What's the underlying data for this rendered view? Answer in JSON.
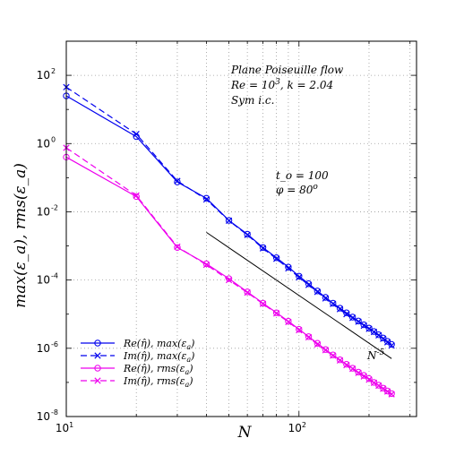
{
  "chart_data": {
    "type": "line",
    "x_scale": "log",
    "y_scale": "log",
    "xlim": [
      10,
      320
    ],
    "ylim": [
      1e-08,
      1000
    ],
    "grid": true,
    "x_ticks": [
      {
        "value": 10,
        "base": "10",
        "exp": "1"
      },
      {
        "value": 100,
        "base": "10",
        "exp": "2"
      }
    ],
    "y_ticks": [
      {
        "value": 100,
        "base": "10",
        "exp": "2"
      },
      {
        "value": 1,
        "base": "10",
        "exp": "0"
      },
      {
        "value": 0.01,
        "base": "10",
        "exp": "-2"
      },
      {
        "value": 0.0001,
        "base": "10",
        "exp": "-4"
      },
      {
        "value": 1e-06,
        "base": "10",
        "exp": "-6"
      },
      {
        "value": 1e-08,
        "base": "10",
        "exp": "-8"
      }
    ],
    "xlabel": "N",
    "ylabel": "max(ε_a), rms(ε_a)",
    "annotations": {
      "title1": "Plane Poiseuille flow",
      "title2_prefix": "Re = 10",
      "title2_sup": "3",
      "title2_suffix": ", k = 2.04",
      "title3": "Sym i.c.",
      "param1": "t_o = 100",
      "param2_prefix": "φ = 80",
      "param2_sup": "o",
      "slope_base": "N",
      "slope_sup": "-5"
    },
    "reference_line": {
      "x": [
        40,
        250
      ],
      "y": [
        0.0025,
        5e-07
      ],
      "color": "#000000",
      "label": "N^-5"
    },
    "series": [
      {
        "name": "Re(η̂), max(ε_a)",
        "color": "#0000ee",
        "linestyle": "solid",
        "marker": "circle",
        "x": [
          10,
          20,
          30,
          40,
          50,
          60,
          70,
          80,
          90,
          100,
          110,
          120,
          130,
          140,
          150,
          160,
          170,
          180,
          190,
          200,
          210,
          220,
          230,
          240,
          250
        ],
        "y": [
          25,
          1.6,
          0.075,
          0.025,
          0.0056,
          0.0022,
          0.0009,
          0.00045,
          0.00024,
          0.00013,
          7.8e-05,
          4.8e-05,
          3.1e-05,
          2.1e-05,
          1.5e-05,
          1.1e-05,
          8.2e-06,
          6.3e-06,
          4.9e-06,
          3.9e-06,
          3.1e-06,
          2.5e-06,
          2e-06,
          1.6e-06,
          1.3e-06
        ]
      },
      {
        "name": "Im(η̂), max(ε_a)",
        "color": "#0000ee",
        "linestyle": "dashed",
        "marker": "x",
        "x": [
          10,
          20,
          30,
          40,
          50,
          60,
          70,
          80,
          90,
          100,
          110,
          120,
          130,
          140,
          150,
          160,
          170,
          180,
          190,
          200,
          210,
          220,
          230,
          240,
          250
        ],
        "y": [
          45,
          1.9,
          0.08,
          0.023,
          0.0055,
          0.0021,
          0.00085,
          0.00042,
          0.00022,
          0.00012,
          7.2e-05,
          4.5e-05,
          2.9e-05,
          2e-05,
          1.4e-05,
          1e-05,
          7.8e-06,
          6e-06,
          4.6e-06,
          3.7e-06,
          3e-06,
          2.4e-06,
          1.9e-06,
          1.5e-06,
          1.2e-06
        ]
      },
      {
        "name": "Re(η̂), rms(ε_a)",
        "color": "#ee00ee",
        "linestyle": "solid",
        "marker": "circle",
        "x": [
          10,
          20,
          30,
          40,
          50,
          60,
          70,
          80,
          90,
          100,
          110,
          120,
          130,
          140,
          150,
          160,
          170,
          180,
          190,
          200,
          210,
          220,
          230,
          240,
          250
        ],
        "y": [
          0.4,
          0.028,
          0.0009,
          0.0003,
          0.00011,
          4.5e-05,
          2.1e-05,
          1.1e-05,
          6.2e-06,
          3.6e-06,
          2.2e-06,
          1.4e-06,
          9.2e-07,
          6.4e-07,
          4.6e-07,
          3.4e-07,
          2.6e-07,
          2e-07,
          1.6e-07,
          1.3e-07,
          1e-07,
          8.3e-08,
          6.8e-08,
          5.6e-08,
          4.7e-08
        ]
      },
      {
        "name": "Im(η̂), rms(ε_a)",
        "color": "#ee00ee",
        "linestyle": "dashed",
        "marker": "x",
        "x": [
          10,
          20,
          30,
          40,
          50,
          60,
          70,
          80,
          90,
          100,
          110,
          120,
          130,
          140,
          150,
          160,
          170,
          180,
          190,
          200,
          210,
          220,
          230,
          240,
          250
        ],
        "y": [
          0.75,
          0.03,
          0.00095,
          0.00028,
          0.0001,
          4.3e-05,
          2e-05,
          1.05e-05,
          5.9e-06,
          3.4e-06,
          2.1e-06,
          1.3e-06,
          8.8e-07,
          6.1e-07,
          4.4e-07,
          3.2e-07,
          2.5e-07,
          1.9e-07,
          1.5e-07,
          1.2e-07,
          9.7e-08,
          8e-08,
          6.5e-08,
          5.4e-08,
          4.5e-08
        ]
      }
    ],
    "legend": {
      "placement": "bottom-left",
      "entries": [
        {
          "pre": "Re(",
          "hat": "η̂",
          "mid": "),  max(ε",
          "sub": "a",
          "post": ")"
        },
        {
          "pre": "Im(",
          "hat": "η̂",
          "mid": "),  max(ε",
          "sub": "a",
          "post": ")"
        },
        {
          "pre": "Re(",
          "hat": "η̂",
          "mid": "),  rms(ε",
          "sub": "a",
          "post": ")"
        },
        {
          "pre": "Im(",
          "hat": "η̂",
          "mid": "),  rms(ε",
          "sub": "a",
          "post": ")"
        }
      ]
    }
  }
}
